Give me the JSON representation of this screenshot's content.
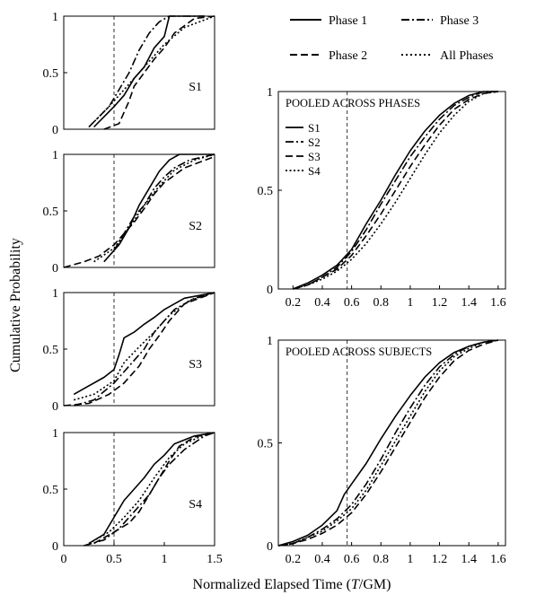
{
  "figure": {
    "ylabel": "Cumulative Probability",
    "xlabel": "Normalized Elapsed Time (T/GM)",
    "xlabel_parts": [
      "Normalized Elapsed Time (",
      "T",
      "/GM)"
    ],
    "reference_line_x": 0.57,
    "legend": [
      {
        "label": "Phase 1",
        "dash": "solid"
      },
      {
        "label": "Phase 3",
        "dash": "dashdot"
      },
      {
        "label": "Phase 2",
        "dash": "dashed"
      },
      {
        "label": "All Phases",
        "dash": "dotted"
      }
    ]
  },
  "chart_data": [
    {
      "type": "line",
      "panel": "S1",
      "label": "S1",
      "xlim": [
        0,
        1.5
      ],
      "ylim": [
        0,
        1
      ],
      "xticks": [],
      "yticks": [
        0,
        0.5,
        1
      ],
      "ytick_labels": [
        "0",
        "0.5",
        "1"
      ],
      "reference_x": 0.5,
      "series": [
        {
          "dash": "solid",
          "x": [
            0.3,
            0.5,
            0.6,
            0.7,
            0.8,
            0.9,
            1.0,
            1.05,
            1.2,
            1.4
          ],
          "y": [
            0.02,
            0.2,
            0.3,
            0.45,
            0.55,
            0.72,
            0.82,
            1.0,
            1.0,
            1.0
          ]
        },
        {
          "dash": "dashdot",
          "x": [
            0.25,
            0.45,
            0.55,
            0.65,
            0.75,
            0.85,
            0.95,
            1.05,
            1.4
          ],
          "y": [
            0.02,
            0.2,
            0.35,
            0.5,
            0.7,
            0.85,
            0.95,
            1.0,
            1.0
          ]
        },
        {
          "dash": "dashed",
          "x": [
            0.4,
            0.55,
            0.65,
            0.7,
            0.8,
            0.9,
            1.0,
            1.1,
            1.3,
            1.5
          ],
          "y": [
            0.0,
            0.05,
            0.25,
            0.38,
            0.5,
            0.62,
            0.72,
            0.85,
            0.98,
            1.0
          ]
        },
        {
          "dash": "dotted",
          "x": [
            0.25,
            0.45,
            0.55,
            0.7,
            0.85,
            1.0,
            1.2,
            1.5
          ],
          "y": [
            0.02,
            0.2,
            0.3,
            0.45,
            0.6,
            0.75,
            0.9,
            1.0
          ]
        }
      ]
    },
    {
      "type": "line",
      "panel": "S2",
      "label": "S2",
      "xlim": [
        0,
        1.5
      ],
      "ylim": [
        0,
        1
      ],
      "xticks": [],
      "yticks": [
        0,
        0.5,
        1
      ],
      "ytick_labels": [
        "0",
        "0.5",
        "1"
      ],
      "reference_x": 0.5,
      "series": [
        {
          "dash": "solid",
          "x": [
            0.45,
            0.55,
            0.65,
            0.75,
            0.85,
            0.95,
            1.05,
            1.15,
            1.5
          ],
          "y": [
            0.1,
            0.2,
            0.35,
            0.55,
            0.7,
            0.85,
            0.95,
            1.0,
            1.0
          ]
        },
        {
          "dash": "dashdot",
          "x": [
            0.4,
            0.5,
            0.6,
            0.7,
            0.8,
            0.9,
            1.0,
            1.1,
            1.25,
            1.5
          ],
          "y": [
            0.05,
            0.15,
            0.3,
            0.45,
            0.55,
            0.7,
            0.8,
            0.88,
            0.95,
            1.0
          ]
        },
        {
          "dash": "dashed",
          "x": [
            0.0,
            0.2,
            0.35,
            0.5,
            0.6,
            0.7,
            0.8,
            0.9,
            1.0,
            1.2,
            1.5
          ],
          "y": [
            0.0,
            0.05,
            0.1,
            0.2,
            0.3,
            0.4,
            0.52,
            0.65,
            0.75,
            0.88,
            0.98
          ]
        },
        {
          "dash": "dotted",
          "x": [
            0.3,
            0.5,
            0.65,
            0.8,
            0.95,
            1.1,
            1.3,
            1.5
          ],
          "y": [
            0.05,
            0.17,
            0.35,
            0.55,
            0.72,
            0.86,
            0.95,
            1.0
          ]
        }
      ]
    },
    {
      "type": "line",
      "panel": "S3",
      "label": "S3",
      "xlim": [
        0,
        1.5
      ],
      "ylim": [
        0,
        1
      ],
      "xticks": [],
      "yticks": [
        0,
        0.5,
        1
      ],
      "ytick_labels": [
        "0",
        "0.5",
        "1"
      ],
      "reference_x": 0.5,
      "series": [
        {
          "dash": "solid",
          "x": [
            0.1,
            0.2,
            0.4,
            0.5,
            0.55,
            0.6,
            0.7,
            0.8,
            0.9,
            1.0,
            1.2,
            1.5
          ],
          "y": [
            0.1,
            0.15,
            0.25,
            0.32,
            0.45,
            0.6,
            0.65,
            0.72,
            0.78,
            0.85,
            0.95,
            1.0
          ]
        },
        {
          "dash": "dashdot",
          "x": [
            0.1,
            0.3,
            0.5,
            0.65,
            0.8,
            0.9,
            1.0,
            1.1,
            1.3,
            1.5
          ],
          "y": [
            0.0,
            0.05,
            0.2,
            0.35,
            0.5,
            0.65,
            0.75,
            0.85,
            0.95,
            1.0
          ]
        },
        {
          "dash": "dashed",
          "x": [
            0.0,
            0.25,
            0.45,
            0.6,
            0.75,
            0.85,
            0.95,
            1.05,
            1.2,
            1.5
          ],
          "y": [
            0.0,
            0.02,
            0.1,
            0.2,
            0.35,
            0.5,
            0.62,
            0.75,
            0.9,
            1.0
          ]
        },
        {
          "dash": "dotted",
          "x": [
            0.1,
            0.3,
            0.5,
            0.6,
            0.75,
            0.9,
            1.05,
            1.25,
            1.5
          ],
          "y": [
            0.05,
            0.1,
            0.22,
            0.38,
            0.52,
            0.65,
            0.8,
            0.93,
            1.0
          ]
        }
      ]
    },
    {
      "type": "line",
      "panel": "S4",
      "label": "S4",
      "xlim": [
        0,
        1.5
      ],
      "ylim": [
        0,
        1
      ],
      "xticks": [
        0,
        0.5,
        1,
        1.5
      ],
      "xtick_labels": [
        "0",
        "0.5",
        "1",
        "1.5"
      ],
      "yticks": [
        0,
        0.5,
        1
      ],
      "ytick_labels": [
        "0",
        "0.5",
        "1"
      ],
      "reference_x": 0.5,
      "series": [
        {
          "dash": "solid",
          "x": [
            0.25,
            0.4,
            0.5,
            0.6,
            0.7,
            0.8,
            0.9,
            1.0,
            1.1,
            1.3,
            1.5
          ],
          "y": [
            0.02,
            0.1,
            0.25,
            0.4,
            0.5,
            0.6,
            0.72,
            0.8,
            0.9,
            0.97,
            1.0
          ]
        },
        {
          "dash": "dashdot",
          "x": [
            0.2,
            0.4,
            0.55,
            0.7,
            0.85,
            0.95,
            1.05,
            1.2,
            1.4,
            1.5
          ],
          "y": [
            0.0,
            0.05,
            0.15,
            0.3,
            0.45,
            0.6,
            0.72,
            0.85,
            0.97,
            1.0
          ]
        },
        {
          "dash": "dashed",
          "x": [
            0.3,
            0.5,
            0.65,
            0.75,
            0.85,
            0.95,
            1.05,
            1.15,
            1.3,
            1.5
          ],
          "y": [
            0.02,
            0.12,
            0.2,
            0.3,
            0.45,
            0.6,
            0.75,
            0.88,
            0.96,
            1.0
          ]
        },
        {
          "dash": "dotted",
          "x": [
            0.25,
            0.45,
            0.6,
            0.75,
            0.9,
            1.05,
            1.2,
            1.4,
            1.5
          ],
          "y": [
            0.02,
            0.12,
            0.25,
            0.4,
            0.6,
            0.78,
            0.9,
            0.98,
            1.0
          ]
        }
      ]
    },
    {
      "type": "line",
      "panel": "pooled-phases",
      "title": "POOLED ACROSS PHASES",
      "xlim": [
        0.1,
        1.65
      ],
      "ylim": [
        0,
        1
      ],
      "xticks": [
        0.2,
        0.4,
        0.6,
        0.8,
        1.0,
        1.2,
        1.4,
        1.6
      ],
      "xtick_labels": [
        "0.2",
        "0.4",
        "0.6",
        "0.8",
        "1",
        "1.2",
        "1.4",
        "1.6"
      ],
      "yticks": [
        0,
        0.5,
        1
      ],
      "ytick_labels": [
        "0",
        "0.5",
        "1"
      ],
      "reference_x": 0.57,
      "legend": [
        {
          "label": "S1",
          "dash": "solid"
        },
        {
          "label": "S2",
          "dash": "dashdot"
        },
        {
          "label": "S3",
          "dash": "dashed"
        },
        {
          "label": "S4",
          "dash": "dotted"
        }
      ],
      "series": [
        {
          "dash": "solid",
          "x": [
            0.2,
            0.3,
            0.4,
            0.5,
            0.6,
            0.7,
            0.8,
            0.9,
            1.0,
            1.1,
            1.2,
            1.3,
            1.4,
            1.5,
            1.6
          ],
          "y": [
            0.0,
            0.03,
            0.07,
            0.12,
            0.2,
            0.33,
            0.45,
            0.58,
            0.7,
            0.8,
            0.88,
            0.94,
            0.98,
            1.0,
            1.0
          ]
        },
        {
          "dash": "dashdot",
          "x": [
            0.2,
            0.3,
            0.4,
            0.5,
            0.6,
            0.7,
            0.8,
            0.9,
            1.0,
            1.1,
            1.2,
            1.3,
            1.4,
            1.5,
            1.6
          ],
          "y": [
            0.0,
            0.02,
            0.06,
            0.11,
            0.19,
            0.3,
            0.43,
            0.55,
            0.67,
            0.77,
            0.86,
            0.93,
            0.97,
            1.0,
            1.0
          ]
        },
        {
          "dash": "dashed",
          "x": [
            0.2,
            0.3,
            0.4,
            0.5,
            0.6,
            0.7,
            0.8,
            0.9,
            1.0,
            1.1,
            1.2,
            1.3,
            1.4,
            1.5,
            1.6
          ],
          "y": [
            0.0,
            0.02,
            0.06,
            0.1,
            0.17,
            0.27,
            0.38,
            0.5,
            0.62,
            0.73,
            0.83,
            0.91,
            0.96,
            0.99,
            1.0
          ]
        },
        {
          "dash": "dotted",
          "x": [
            0.2,
            0.3,
            0.4,
            0.5,
            0.6,
            0.7,
            0.8,
            0.9,
            1.0,
            1.1,
            1.2,
            1.3,
            1.4,
            1.5,
            1.6
          ],
          "y": [
            0.0,
            0.02,
            0.05,
            0.09,
            0.15,
            0.23,
            0.33,
            0.44,
            0.56,
            0.68,
            0.79,
            0.88,
            0.95,
            0.99,
            1.0
          ]
        }
      ]
    },
    {
      "type": "line",
      "panel": "pooled-subjects",
      "title": "POOLED ACROSS SUBJECTS",
      "xlim": [
        0.1,
        1.65
      ],
      "ylim": [
        0,
        1
      ],
      "xticks": [
        0.2,
        0.4,
        0.6,
        0.8,
        1.0,
        1.2,
        1.4,
        1.6
      ],
      "xtick_labels": [
        "0.2",
        "0.4",
        "0.6",
        "0.8",
        "1",
        "1.2",
        "1.4",
        "1.6"
      ],
      "yticks": [
        0,
        0.5,
        1
      ],
      "ytick_labels": [
        "0",
        "0.5",
        "1"
      ],
      "reference_x": 0.57,
      "series": [
        {
          "dash": "solid",
          "x": [
            0.1,
            0.2,
            0.3,
            0.4,
            0.5,
            0.55,
            0.6,
            0.7,
            0.8,
            0.9,
            1.0,
            1.1,
            1.2,
            1.3,
            1.4,
            1.5,
            1.6
          ],
          "y": [
            0.0,
            0.02,
            0.05,
            0.1,
            0.17,
            0.25,
            0.3,
            0.4,
            0.52,
            0.63,
            0.73,
            0.82,
            0.89,
            0.94,
            0.97,
            0.99,
            1.0
          ]
        },
        {
          "dash": "dashdot",
          "x": [
            0.1,
            0.2,
            0.3,
            0.4,
            0.5,
            0.6,
            0.7,
            0.8,
            0.9,
            1.0,
            1.1,
            1.2,
            1.3,
            1.4,
            1.5,
            1.6
          ],
          "y": [
            0.0,
            0.01,
            0.04,
            0.08,
            0.13,
            0.2,
            0.3,
            0.42,
            0.55,
            0.67,
            0.78,
            0.87,
            0.93,
            0.97,
            0.99,
            1.0
          ]
        },
        {
          "dash": "dashed",
          "x": [
            0.1,
            0.2,
            0.3,
            0.4,
            0.5,
            0.6,
            0.7,
            0.8,
            0.9,
            1.0,
            1.1,
            1.2,
            1.3,
            1.4,
            1.5,
            1.6
          ],
          "y": [
            0.0,
            0.01,
            0.03,
            0.06,
            0.1,
            0.16,
            0.25,
            0.36,
            0.48,
            0.6,
            0.72,
            0.82,
            0.9,
            0.95,
            0.98,
            1.0
          ]
        },
        {
          "dash": "dotted",
          "x": [
            0.1,
            0.2,
            0.3,
            0.4,
            0.5,
            0.6,
            0.7,
            0.8,
            0.9,
            1.0,
            1.1,
            1.2,
            1.3,
            1.4,
            1.5,
            1.6
          ],
          "y": [
            0.0,
            0.01,
            0.04,
            0.07,
            0.12,
            0.18,
            0.27,
            0.39,
            0.51,
            0.63,
            0.75,
            0.85,
            0.92,
            0.96,
            0.99,
            1.0
          ]
        }
      ]
    }
  ]
}
